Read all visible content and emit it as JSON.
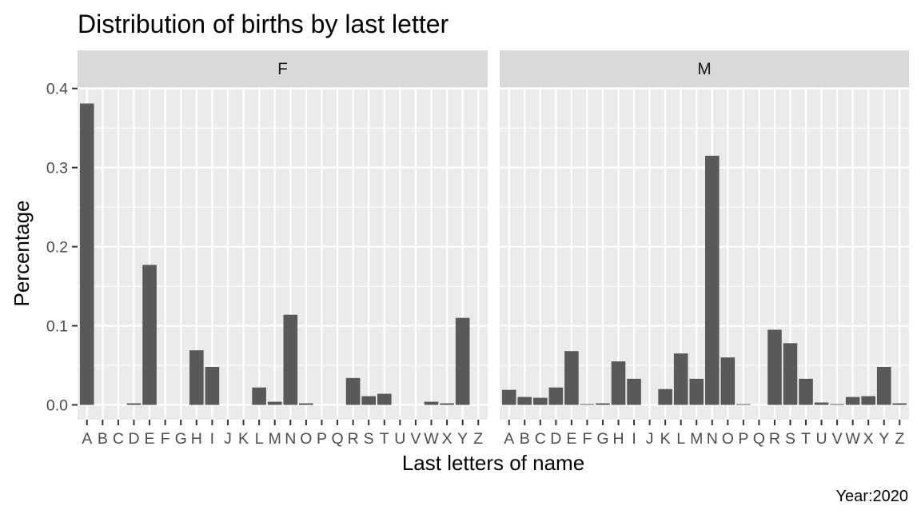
{
  "chart_data": {
    "type": "bar",
    "title": "Distribution of births by last letter",
    "xlabel": "Last letters of name",
    "ylabel": "Percentage",
    "caption": "Year:2020",
    "ylim": [
      0,
      0.4
    ],
    "yticks": [
      "0.0",
      "0.1",
      "0.2",
      "0.3",
      "0.4"
    ],
    "ytick_values": [
      0,
      0.1,
      0.2,
      0.3,
      0.4
    ],
    "grid": true,
    "categories": [
      "A",
      "B",
      "C",
      "D",
      "E",
      "F",
      "G",
      "H",
      "I",
      "J",
      "K",
      "L",
      "M",
      "N",
      "O",
      "P",
      "Q",
      "R",
      "S",
      "T",
      "U",
      "V",
      "W",
      "X",
      "Y",
      "Z"
    ],
    "facets": [
      {
        "label": "F",
        "values": [
          0.381,
          0,
          0,
          0.002,
          0.177,
          0,
          0,
          0.069,
          0.048,
          0,
          0,
          0.022,
          0.004,
          0.114,
          0.002,
          0,
          0,
          0.034,
          0.011,
          0.014,
          0,
          0,
          0.004,
          0.002,
          0.11,
          0
        ]
      },
      {
        "label": "M",
        "values": [
          0.019,
          0.01,
          0.009,
          0.022,
          0.068,
          0.001,
          0.002,
          0.055,
          0.033,
          0,
          0.02,
          0.065,
          0.033,
          0.315,
          0.06,
          0.001,
          0,
          0.095,
          0.078,
          0.033,
          0.003,
          0.001,
          0.01,
          0.011,
          0.048,
          0.002
        ]
      }
    ],
    "colors": {
      "bar": "#595959",
      "panel_background": "#ebebeb",
      "strip_background": "#d9d9d9",
      "grid": "#ffffff",
      "tick": "#333333"
    }
  }
}
